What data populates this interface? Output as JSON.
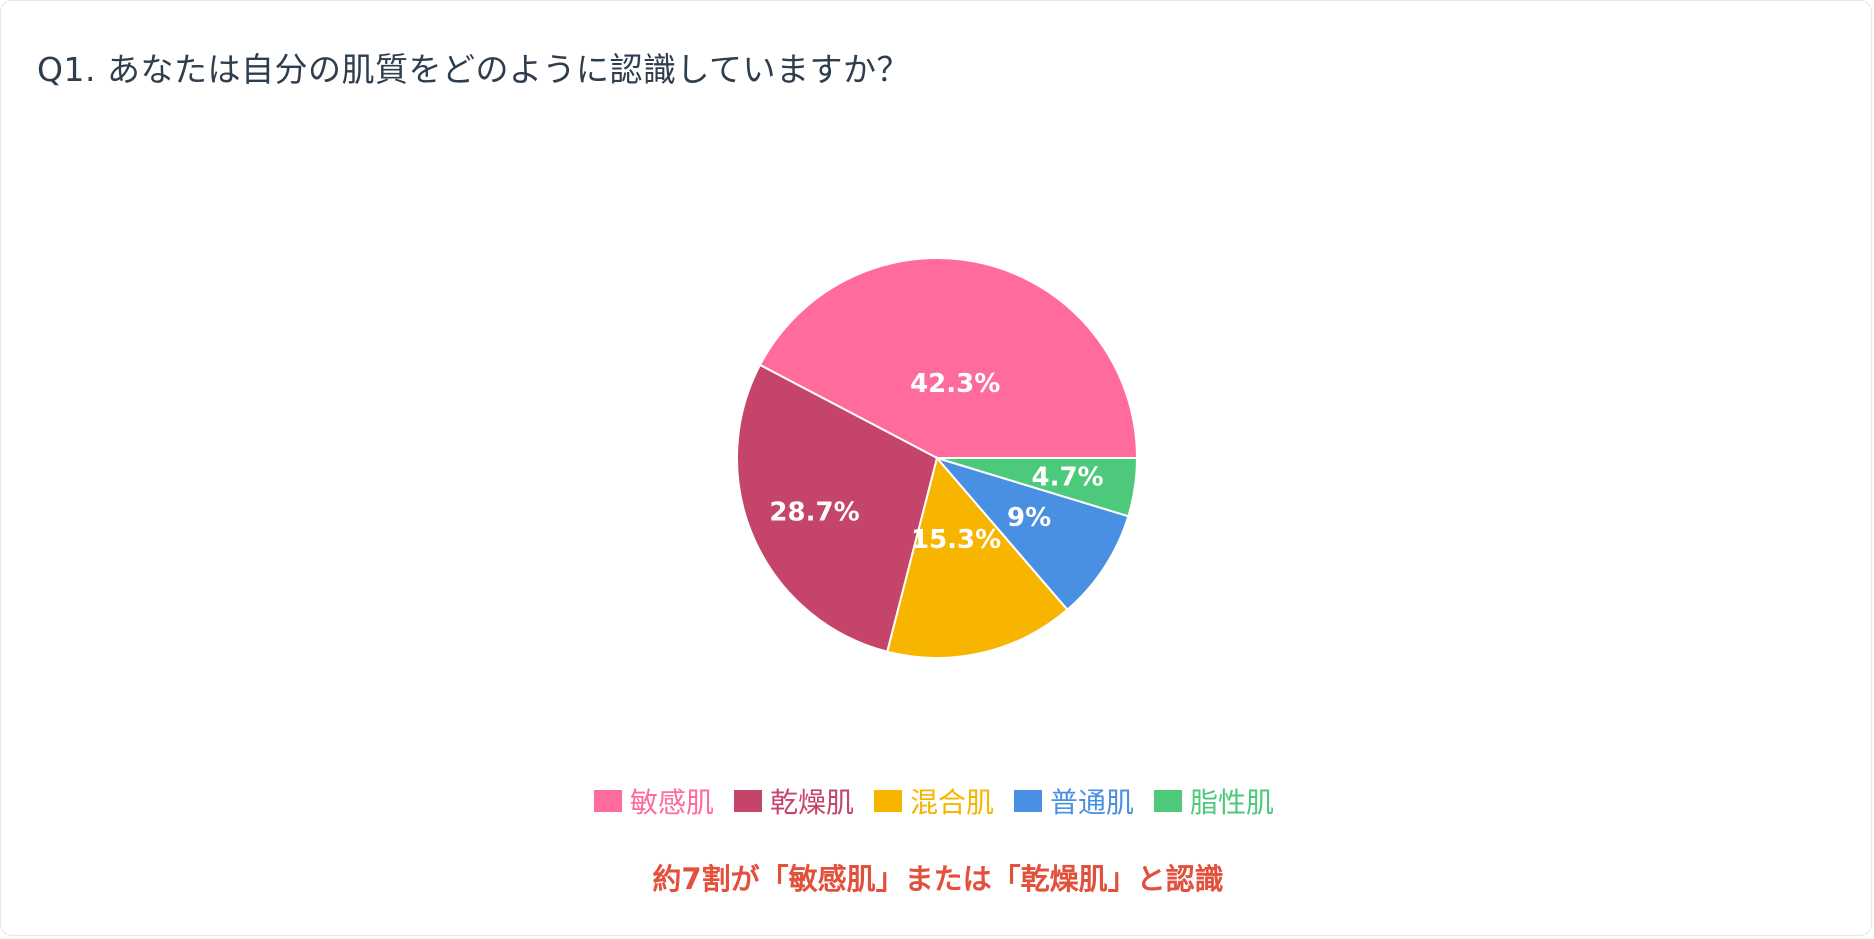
{
  "question": {
    "title": "Q1. あなたは自分の肌質をどのように認識していますか？"
  },
  "chart_data": {
    "type": "pie",
    "categories": [
      "敏感肌",
      "乾燥肌",
      "混合肌",
      "普通肌",
      "脂性肌"
    ],
    "values": [
      42.3,
      28.7,
      15.3,
      9,
      4.7
    ],
    "labels": [
      "42.3%",
      "28.7%",
      "15.3%",
      "9%",
      "4.7%"
    ],
    "colors": [
      "#ff6b9a",
      "#c44569",
      "#f7b500",
      "#4a90e2",
      "#4cc97a"
    ],
    "legend_placement": "bottom"
  },
  "legend": {
    "items": [
      {
        "label": "敏感肌",
        "color": "#ff6b9a"
      },
      {
        "label": "乾燥肌",
        "color": "#c44569"
      },
      {
        "label": "混合肌",
        "color": "#f7b500"
      },
      {
        "label": "普通肌",
        "color": "#4a90e2"
      },
      {
        "label": "脂性肌",
        "color": "#4cc97a"
      }
    ]
  },
  "caption": {
    "text": "約7割が「敏感肌」または「乾燥肌」と認識"
  }
}
